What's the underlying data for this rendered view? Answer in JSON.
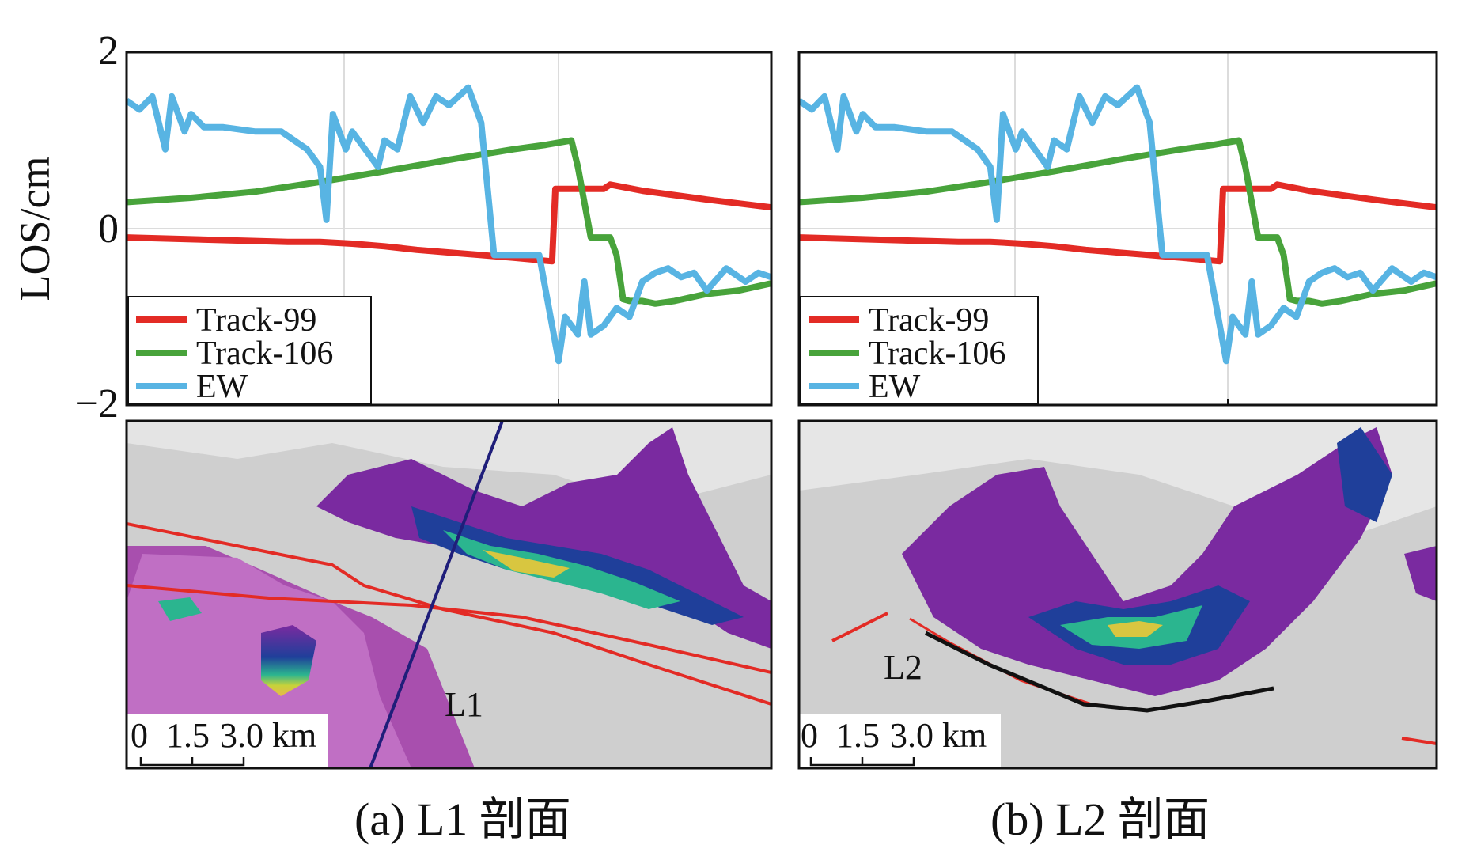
{
  "chart_data": [
    {
      "type": "line",
      "panel": "(a)",
      "ylabel": "LOS/cm",
      "xlabel": "",
      "ylim": [
        -2,
        2
      ],
      "yticks": [
        -2,
        0,
        2
      ],
      "x_range": [
        0,
        1
      ],
      "grid": true,
      "legend_position": "bottom-left",
      "series": [
        {
          "name": "Track-99",
          "color": "#e32b25",
          "x": [
            0,
            0.1,
            0.2,
            0.25,
            0.3,
            0.35,
            0.4,
            0.45,
            0.5,
            0.55,
            0.6,
            0.66,
            0.665,
            0.68,
            0.74,
            0.75,
            0.8,
            0.9,
            1.0
          ],
          "y": [
            -0.1,
            -0.12,
            -0.14,
            -0.15,
            -0.15,
            -0.17,
            -0.2,
            -0.24,
            -0.27,
            -0.3,
            -0.33,
            -0.37,
            0.45,
            0.45,
            0.45,
            0.5,
            0.43,
            0.33,
            0.24
          ]
        },
        {
          "name": "Track-106",
          "color": "#48a33b",
          "x": [
            0,
            0.1,
            0.2,
            0.3,
            0.4,
            0.5,
            0.55,
            0.6,
            0.65,
            0.69,
            0.7,
            0.72,
            0.75,
            0.76,
            0.77,
            0.78,
            0.8,
            0.82,
            0.85,
            0.9,
            0.95,
            1.0
          ],
          "y": [
            0.3,
            0.35,
            0.42,
            0.53,
            0.65,
            0.78,
            0.84,
            0.9,
            0.95,
            1.0,
            0.7,
            -0.1,
            -0.1,
            -0.3,
            -0.8,
            -0.82,
            -0.82,
            -0.85,
            -0.82,
            -0.74,
            -0.7,
            -0.62
          ]
        },
        {
          "name": "EW",
          "color": "#58b4e3",
          "x": [
            0,
            0.02,
            0.04,
            0.06,
            0.07,
            0.09,
            0.1,
            0.12,
            0.15,
            0.2,
            0.24,
            0.28,
            0.3,
            0.31,
            0.32,
            0.34,
            0.35,
            0.37,
            0.39,
            0.4,
            0.42,
            0.44,
            0.46,
            0.48,
            0.5,
            0.53,
            0.55,
            0.57,
            0.58,
            0.6,
            0.62,
            0.64,
            0.67,
            0.68,
            0.7,
            0.71,
            0.72,
            0.74,
            0.76,
            0.78,
            0.8,
            0.82,
            0.84,
            0.86,
            0.88,
            0.9,
            0.93,
            0.96,
            0.98,
            1.0
          ],
          "y": [
            1.45,
            1.35,
            1.5,
            0.9,
            1.5,
            1.1,
            1.3,
            1.15,
            1.15,
            1.1,
            1.1,
            0.9,
            0.7,
            0.1,
            1.3,
            0.9,
            1.1,
            0.9,
            0.7,
            1.0,
            0.9,
            1.5,
            1.2,
            1.5,
            1.4,
            1.6,
            1.2,
            -0.3,
            -0.3,
            -0.3,
            -0.3,
            -0.3,
            -1.5,
            -1.0,
            -1.2,
            -0.6,
            -1.2,
            -1.1,
            -0.9,
            -1.0,
            -0.6,
            -0.5,
            -0.45,
            -0.55,
            -0.5,
            -0.7,
            -0.45,
            -0.6,
            -0.5,
            -0.55
          ]
        }
      ]
    },
    {
      "type": "line",
      "panel": "(b)",
      "ylabel": "",
      "xlabel": "",
      "ylim": [
        -2,
        2
      ],
      "x_range": [
        0,
        1
      ],
      "grid": true,
      "legend_position": "bottom-left",
      "series": [
        {
          "name": "Track-99",
          "color": "#e32b25",
          "x": [
            0,
            0.1,
            0.2,
            0.25,
            0.3,
            0.35,
            0.4,
            0.45,
            0.5,
            0.55,
            0.6,
            0.66,
            0.665,
            0.68,
            0.74,
            0.75,
            0.8,
            0.9,
            1.0
          ],
          "y": [
            -0.1,
            -0.12,
            -0.14,
            -0.15,
            -0.15,
            -0.17,
            -0.2,
            -0.24,
            -0.27,
            -0.3,
            -0.33,
            -0.37,
            0.45,
            0.45,
            0.45,
            0.5,
            0.43,
            0.33,
            0.24
          ]
        },
        {
          "name": "Track-106",
          "color": "#48a33b",
          "x": [
            0,
            0.1,
            0.2,
            0.3,
            0.4,
            0.5,
            0.55,
            0.6,
            0.65,
            0.69,
            0.7,
            0.72,
            0.75,
            0.76,
            0.77,
            0.78,
            0.8,
            0.82,
            0.85,
            0.9,
            0.95,
            1.0
          ],
          "y": [
            0.3,
            0.35,
            0.42,
            0.53,
            0.65,
            0.78,
            0.84,
            0.9,
            0.95,
            1.0,
            0.7,
            -0.1,
            -0.1,
            -0.3,
            -0.8,
            -0.82,
            -0.82,
            -0.85,
            -0.82,
            -0.74,
            -0.7,
            -0.62
          ]
        },
        {
          "name": "EW",
          "color": "#58b4e3",
          "x": [
            0,
            0.02,
            0.04,
            0.06,
            0.07,
            0.09,
            0.1,
            0.12,
            0.15,
            0.2,
            0.24,
            0.28,
            0.3,
            0.31,
            0.32,
            0.34,
            0.35,
            0.37,
            0.39,
            0.4,
            0.42,
            0.44,
            0.46,
            0.48,
            0.5,
            0.53,
            0.55,
            0.57,
            0.58,
            0.6,
            0.62,
            0.64,
            0.67,
            0.68,
            0.7,
            0.71,
            0.72,
            0.74,
            0.76,
            0.78,
            0.8,
            0.82,
            0.84,
            0.86,
            0.88,
            0.9,
            0.93,
            0.96,
            0.98,
            1.0
          ],
          "y": [
            1.45,
            1.35,
            1.5,
            0.9,
            1.5,
            1.1,
            1.3,
            1.15,
            1.15,
            1.1,
            1.1,
            0.9,
            0.7,
            0.1,
            1.3,
            0.9,
            1.1,
            0.9,
            0.7,
            1.0,
            0.9,
            1.5,
            1.2,
            1.5,
            1.4,
            1.6,
            1.2,
            -0.3,
            -0.3,
            -0.3,
            -0.3,
            -0.3,
            -1.5,
            -1.0,
            -1.2,
            -0.6,
            -1.2,
            -1.1,
            -0.9,
            -1.0,
            -0.6,
            -0.5,
            -0.45,
            -0.55,
            -0.5,
            -0.7,
            -0.45,
            -0.6,
            -0.5,
            -0.55
          ]
        }
      ]
    }
  ],
  "maps": {
    "a": {
      "profile_label": "L1",
      "scale_ticks": [
        "0",
        "1.5",
        "3.0 km"
      ]
    },
    "b": {
      "profile_label": "L2",
      "scale_ticks": [
        "0",
        "1.5",
        "3.0 km"
      ]
    }
  },
  "captions": {
    "a": "(a) L1 剖面",
    "b": "(b) L2 剖面"
  }
}
